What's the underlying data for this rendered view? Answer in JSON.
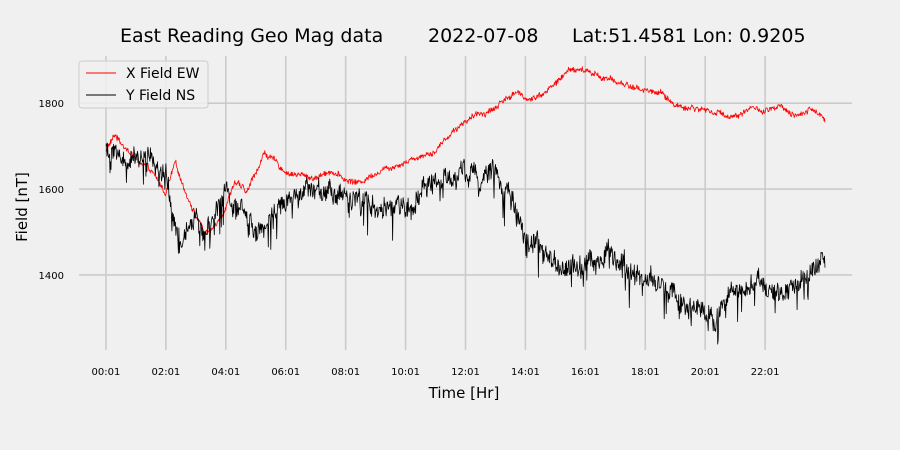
{
  "chart_data": {
    "type": "line",
    "title_parts": [
      "East Reading Geo Mag data",
      "2022-07-08",
      "Lat:51.4581  Lon: 0.9205"
    ],
    "xlabel": "Time  [Hr]",
    "ylabel": "Field  [nT]",
    "x_unit": "hours",
    "xlim": [
      -0.9,
      24.9
    ],
    "ylim": [
      1225,
      1910
    ],
    "x_ticks": [
      0,
      2,
      4,
      6,
      8,
      10,
      12,
      14,
      16,
      18,
      20,
      22
    ],
    "x_tick_labels": [
      "00:01",
      "02:01",
      "04:01",
      "06:01",
      "08:01",
      "10:01",
      "12:01",
      "14:01",
      "16:01",
      "18:01",
      "20:01",
      "22:01"
    ],
    "y_ticks": [
      1400,
      1600,
      1800
    ],
    "y_tick_labels": [
      "1400",
      "1600",
      "1800"
    ],
    "grid": true,
    "legend_position": "top-left",
    "series": [
      {
        "name": "X Field EW",
        "color": "#ff0000",
        "noise": 8,
        "x": [
          0,
          0.3,
          0.5,
          1,
          1.5,
          2,
          2.3,
          2.5,
          3,
          3.3,
          3.5,
          4,
          4.3,
          4.7,
          5,
          5.3,
          6,
          7,
          7.5,
          8,
          8.5,
          9,
          10,
          11,
          11.5,
          12,
          13,
          13.3,
          13.7,
          14,
          14.5,
          15,
          15.5,
          16,
          17,
          18,
          18.5,
          19,
          19.5,
          20,
          20.5,
          21,
          21.5,
          22,
          22.5,
          23,
          23.5,
          24
        ],
        "y": [
          1690,
          1725,
          1710,
          1670,
          1640,
          1590,
          1660,
          1620,
          1540,
          1500,
          1500,
          1560,
          1620,
          1590,
          1640,
          1685,
          1640,
          1625,
          1645,
          1620,
          1615,
          1640,
          1665,
          1690,
          1730,
          1760,
          1790,
          1810,
          1825,
          1810,
          1820,
          1845,
          1880,
          1875,
          1850,
          1830,
          1825,
          1795,
          1790,
          1785,
          1775,
          1770,
          1790,
          1780,
          1790,
          1765,
          1790,
          1765
        ]
      },
      {
        "name": "Y Field NS",
        "color": "#000000",
        "noise": 28,
        "x": [
          0,
          0.5,
          1,
          1.5,
          2,
          2.3,
          2.7,
          3,
          3.3,
          3.7,
          4,
          4.5,
          5,
          5.3,
          5.7,
          6,
          6.5,
          7,
          7.5,
          8,
          8.5,
          9,
          9.5,
          10,
          10.5,
          11,
          11.5,
          12,
          12.5,
          13,
          13.3,
          13.7,
          14,
          14.5,
          15,
          15.5,
          16,
          16.5,
          17,
          17.5,
          18,
          18.5,
          19,
          19.3,
          19.7,
          20,
          20.3,
          20.6,
          21,
          21.5,
          22,
          22.5,
          23,
          23.5,
          24
        ],
        "y": [
          1695,
          1680,
          1660,
          1670,
          1610,
          1500,
          1500,
          1540,
          1490,
          1560,
          1580,
          1550,
          1510,
          1520,
          1570,
          1580,
          1590,
          1600,
          1595,
          1580,
          1585,
          1560,
          1550,
          1560,
          1590,
          1610,
          1620,
          1640,
          1650,
          1640,
          1600,
          1550,
          1510,
          1460,
          1420,
          1420,
          1430,
          1440,
          1430,
          1410,
          1400,
          1380,
          1350,
          1330,
          1320,
          1320,
          1300,
          1330,
          1380,
          1370,
          1360,
          1350,
          1380,
          1410,
          1420
        ]
      }
    ]
  }
}
